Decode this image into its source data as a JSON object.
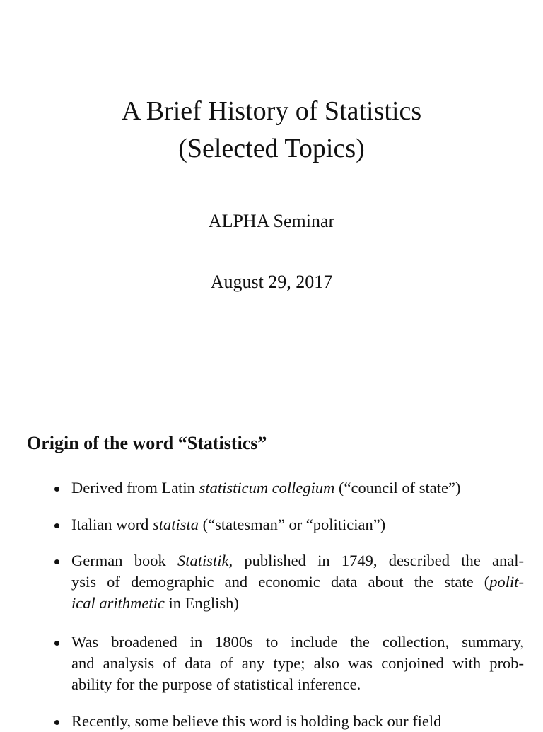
{
  "title": {
    "line1": "A Brief History of Statistics",
    "line2": "(Selected Topics)"
  },
  "author": "ALPHA Seminar",
  "date": "August 29, 2017",
  "section": {
    "heading": "Origin of the word “Statistics”",
    "bullets": [
      {
        "lines": [
          [
            {
              "t": "Derived from Latin "
            },
            {
              "t": "statisticum collegium",
              "i": true
            },
            {
              "t": " (“council of state”)"
            }
          ]
        ]
      },
      {
        "lines": [
          [
            {
              "t": "Italian word "
            },
            {
              "t": "statista",
              "i": true
            },
            {
              "t": " (“statesman” or “politician”)"
            }
          ]
        ]
      },
      {
        "lines": [
          [
            {
              "t": "German book "
            },
            {
              "t": "Statistik",
              "i": true
            },
            {
              "t": ", published in 1749, described the anal-"
            }
          ],
          [
            {
              "t": "ysis of demographic and economic data about the state ("
            },
            {
              "t": "polit-",
              "i": true
            }
          ],
          [
            {
              "t": "ical arithmetic",
              "i": true
            },
            {
              "t": " in English)"
            }
          ]
        ]
      },
      {
        "lines": [
          [
            {
              "t": "Was broadened in 1800s to include the collection, summary,"
            }
          ],
          [
            {
              "t": "and analysis of data of any type; also was conjoined with prob-"
            }
          ],
          [
            {
              "t": "ability for the purpose of statistical inference."
            }
          ]
        ]
      },
      {
        "lines": [
          [
            {
              "t": "Recently, some believe this word is holding back our field"
            }
          ]
        ]
      }
    ]
  }
}
